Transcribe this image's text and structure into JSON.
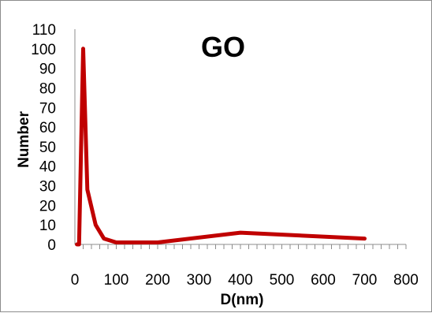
{
  "chart_data": {
    "type": "line",
    "title": "GO",
    "xlabel": "D(nm)",
    "ylabel": "Number",
    "xlim": [
      0,
      800
    ],
    "ylim": [
      0,
      110
    ],
    "x_ticks": [
      0,
      100,
      200,
      300,
      400,
      500,
      600,
      700,
      800
    ],
    "y_ticks": [
      0,
      10,
      20,
      30,
      40,
      50,
      60,
      70,
      80,
      90,
      100,
      110
    ],
    "x_minor_step": 20,
    "grid": false,
    "legend": "none",
    "series": [
      {
        "color": "#c00000",
        "x": [
          5,
          10,
          20,
          30,
          50,
          70,
          100,
          200,
          400,
          700
        ],
        "y": [
          0,
          0,
          100,
          28,
          10,
          3,
          1,
          1,
          6,
          3
        ]
      }
    ]
  }
}
